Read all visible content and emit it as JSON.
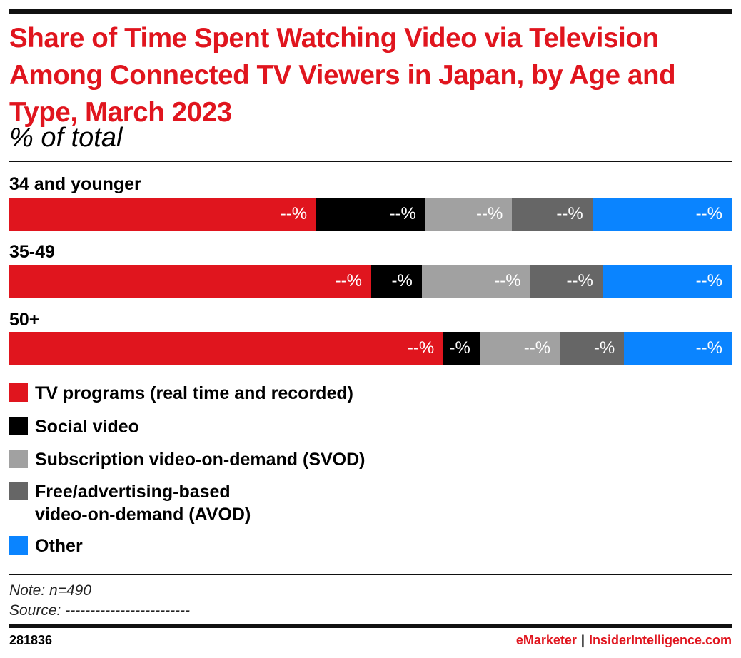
{
  "header": {
    "title": "Share of Time Spent Watching Video via Television Among Connected TV Viewers in Japan, by Age and Type, March 2023",
    "subtitle": "% of total"
  },
  "colors": {
    "tv_programs": "#e0151e",
    "social_video": "#000000",
    "svod": "#a1a1a1",
    "avod": "#666666",
    "other": "#0a84ff",
    "title": "#e0151e"
  },
  "chart_data": {
    "type": "bar",
    "orientation": "horizontal-stacked-100",
    "title": "Share of Time Spent Watching Video via Television Among Connected TV Viewers in Japan, by Age and Type, March 2023",
    "subtitle": "% of total",
    "unit": "%",
    "categories": [
      "34 and younger",
      "35-49",
      "50+"
    ],
    "series": [
      {
        "name": "TV programs (real time and recorded)",
        "values": [
          42.5,
          50.1,
          60.1
        ],
        "labels": [
          "--%",
          "--%",
          "--%"
        ]
      },
      {
        "name": "Social video",
        "values": [
          15.1,
          7.0,
          5.0
        ],
        "labels": [
          "--%",
          "-%",
          "-%"
        ]
      },
      {
        "name": "Subscription video-on-demand (SVOD)",
        "values": [
          12.0,
          15.0,
          11.1
        ],
        "labels": [
          "--%",
          "--%",
          "--%"
        ]
      },
      {
        "name": "Free/advertising-based\nvideo-on-demand (AVOD)",
        "values": [
          11.1,
          10.0,
          8.9
        ],
        "labels": [
          "--%",
          "--%",
          "-%"
        ]
      },
      {
        "name": "Other",
        "values": [
          19.3,
          17.9,
          14.9
        ],
        "labels": [
          "--%",
          "--%",
          "--%"
        ]
      }
    ],
    "legend_position": "bottom-left",
    "grid": false
  },
  "footnotes": {
    "note": "Note: n=490",
    "source": "Source: -------------------------"
  },
  "footer": {
    "chart_id": "281836",
    "brand_emarketer": "eMarketer",
    "separator": "|",
    "brand_ii": "InsiderIntelligence.com"
  }
}
